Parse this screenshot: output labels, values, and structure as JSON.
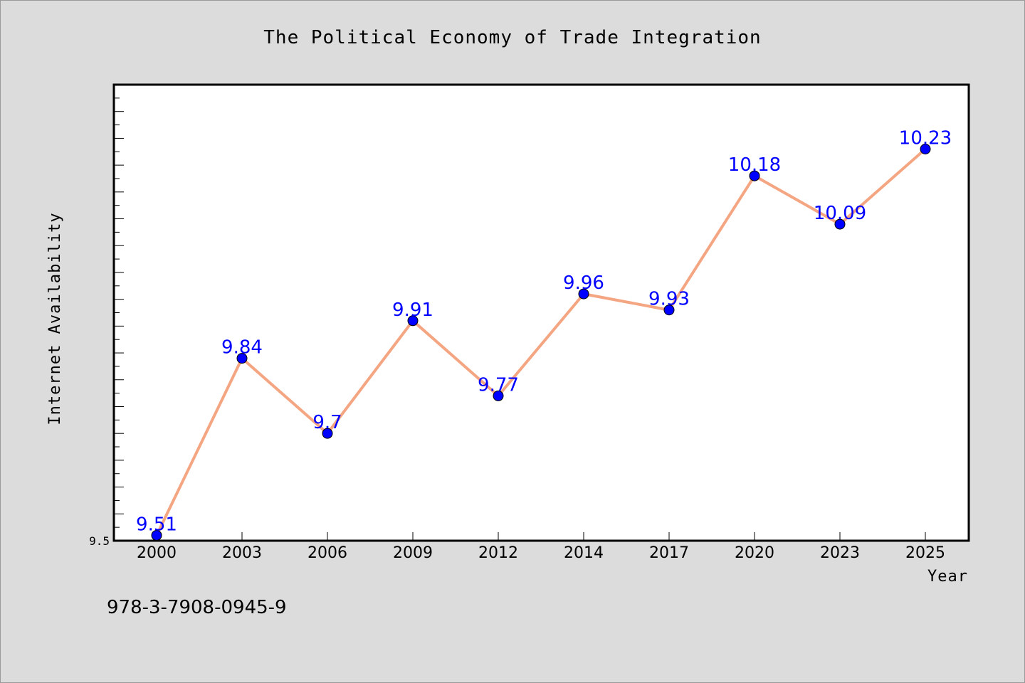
{
  "chart_data": {
    "type": "line",
    "title": "The Political Economy of Trade Integration",
    "xlabel": "Year",
    "ylabel": "Internet Availability",
    "categories": [
      "2000",
      "2003",
      "2006",
      "2009",
      "2012",
      "2014",
      "2017",
      "2020",
      "2023",
      "2025"
    ],
    "series": [
      {
        "values": [
          9.51,
          9.84,
          9.7,
          9.91,
          9.77,
          9.96,
          9.93,
          10.18,
          10.09,
          10.23
        ],
        "line_color": "#f4a582",
        "marker_color": "#0000ff"
      }
    ],
    "ylim": [
      9.5,
      10.35
    ],
    "yticks_labeled": [
      "9.5"
    ],
    "grid": false,
    "legend": "none"
  },
  "footer": {
    "isbn": "978-3-7908-0945-9"
  },
  "colors": {
    "background": "#dcdcdc",
    "plot_background": "#ffffff",
    "line": "#f4a582",
    "marker": "#0000ff",
    "data_label": "#0000ff"
  }
}
